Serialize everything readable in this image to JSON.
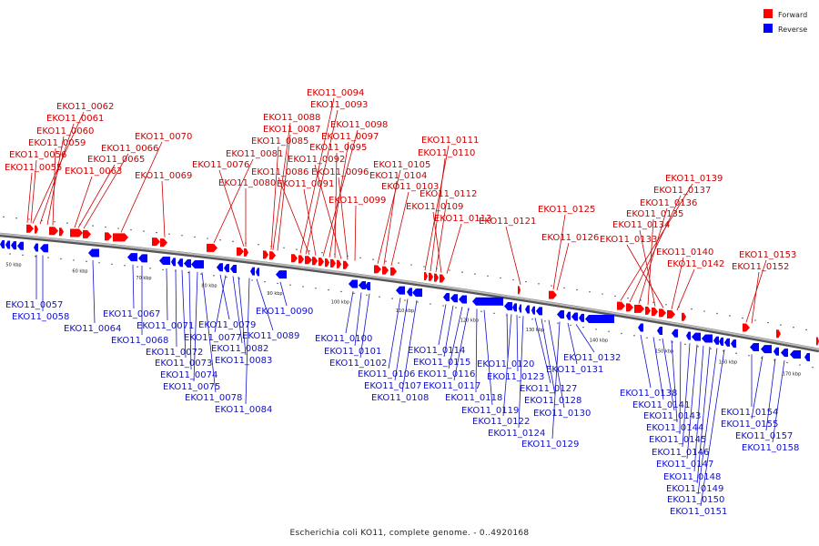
{
  "legend": {
    "forward": {
      "label": "Forward",
      "color": "#ff0000"
    },
    "reverse": {
      "label": "Reverse",
      "color": "#0000ff"
    }
  },
  "caption": "Escherichia coli KO11, complete genome. - 0..4920168",
  "ticks": [
    "50 kbp",
    "60 kbp",
    "70 kbp",
    "80 kbp",
    "90 kbp",
    "100 kbp",
    "110 kbp",
    "120 kbp",
    "130 kbp",
    "140 kbp",
    "150 kbp",
    "160 kbp",
    "170 kbp"
  ],
  "forward_labels": [
    "EKO11_0062",
    "EKO11_0061",
    "EKO11_0060",
    "EKO11_0059",
    "EKO11_0056",
    "EKO11_0055",
    "EKO11_0066",
    "EKO11_0065",
    "EKO11_0063",
    "EKO11_0070",
    "EKO11_0069",
    "EKO11_0081",
    "EKO11_0076",
    "EKO11_0080",
    "EKO11_0094",
    "EKO11_0093",
    "EKO11_0088",
    "EKO11_0087",
    "EKO11_0085",
    "EKO11_0086",
    "EKO11_0091",
    "EKO11_0098",
    "EKO11_0097",
    "EKO11_0095",
    "EKO11_0092",
    "EKO11_0096",
    "EKO11_0099",
    "EKO11_0105",
    "EKO11_0104",
    "EKO11_0103",
    "EKO11_0111",
    "EKO11_0110",
    "EKO11_0112",
    "EKO11_0109",
    "EKO11_0113",
    "EKO11_0121",
    "EKO11_0125",
    "EKO11_0126",
    "EKO11_0139",
    "EKO11_0137",
    "EKO11_0136",
    "EKO11_0135",
    "EKO11_0134",
    "EKO11_0133",
    "EKO11_0140",
    "EKO11_0142",
    "EKO11_0153",
    "EKO11_0152"
  ],
  "reverse_labels": [
    "EKO11_0057",
    "EKO11_0058",
    "EKO11_0064",
    "EKO11_0067",
    "EKO11_0068",
    "EKO11_0071",
    "EKO11_0072",
    "EKO11_0073",
    "EKO11_0074",
    "EKO11_0075",
    "EKO11_0078",
    "EKO11_0079",
    "EKO11_0077",
    "EKO11_0082",
    "EKO11_0083",
    "EKO11_0084",
    "EKO11_0089",
    "EKO11_0090",
    "EKO11_0100",
    "EKO11_0101",
    "EKO11_0102",
    "EKO11_0106",
    "EKO11_0107",
    "EKO11_0108",
    "EKO11_0114",
    "EKO11_0115",
    "EKO11_0116",
    "EKO11_0117",
    "EKO11_0118",
    "EKO11_0119",
    "EKO11_0120",
    "EKO11_0122",
    "EKO11_0123",
    "EKO11_0124",
    "EKO11_0127",
    "EKO11_0128",
    "EKO11_0130",
    "EKO11_0129",
    "EKO11_0131",
    "EKO11_0132",
    "EKO11_0138",
    "EKO11_0141",
    "EKO11_0143",
    "EKO11_0144",
    "EKO11_0145",
    "EKO11_0146",
    "EKO11_0147",
    "EKO11_0148",
    "EKO11_0149",
    "EKO11_0150",
    "EKO11_0151",
    "EKO11_0154",
    "EKO11_0155",
    "EKO11_0157",
    "EKO11_0158"
  ]
}
